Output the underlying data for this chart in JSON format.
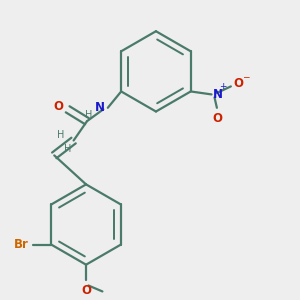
{
  "background_color": "#eeeeee",
  "bond_color": "#4a7a6a",
  "bond_width": 1.6,
  "atom_colors": {
    "O": "#cc2200",
    "N": "#1a1acc",
    "Br": "#cc6600",
    "H": "#4a7a6a"
  },
  "font_size_atoms": 8.5,
  "font_size_small": 7.0,
  "font_size_charge": 6.5
}
